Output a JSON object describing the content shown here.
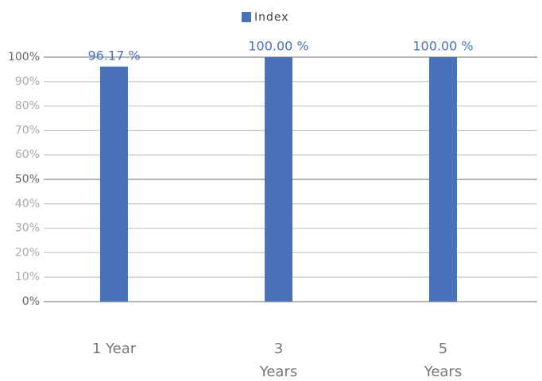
{
  "chart_data": {
    "type": "bar",
    "categories": [
      "1 Year",
      "3 Years",
      "5 Years"
    ],
    "series": [
      {
        "name": "Index",
        "color": "#4a72b8",
        "values": [
          96.17,
          100,
          100
        ],
        "value_labels": [
          "96.17 %",
          "100.00 %",
          "100.00 %"
        ]
      }
    ],
    "ylim": [
      0,
      100
    ],
    "yticks": [
      {
        "value": 0,
        "label": "0%"
      },
      {
        "value": 10,
        "label": "10%"
      },
      {
        "value": 20,
        "label": "20%"
      },
      {
        "value": 30,
        "label": "30%"
      },
      {
        "value": 40,
        "label": "40%"
      },
      {
        "value": 50,
        "label": "50%"
      },
      {
        "value": 60,
        "label": "60%"
      },
      {
        "value": 70,
        "label": "70%"
      },
      {
        "value": 80,
        "label": "80%"
      },
      {
        "value": 90,
        "label": "90%"
      },
      {
        "value": 100,
        "label": "100%"
      }
    ],
    "grid": true,
    "legend": "top"
  }
}
